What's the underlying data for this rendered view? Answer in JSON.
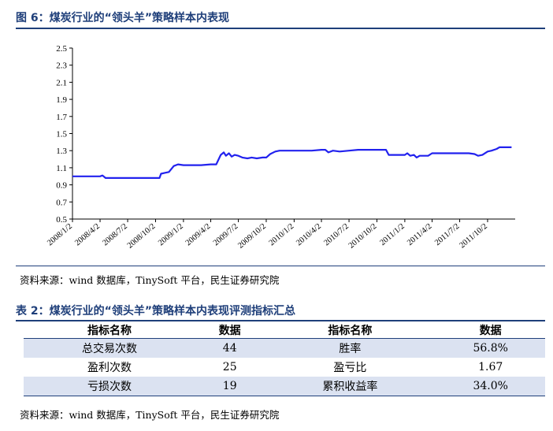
{
  "figure": {
    "title": "图 6：煤炭行业的“领头羊”策略样本内表现",
    "source": "资料来源：wind 数据库，TinySoft 平台，民生证券研究院"
  },
  "chart_data": {
    "type": "line",
    "title": "",
    "xlabel": "",
    "ylabel": "",
    "x_tick_labels": [
      "2008/1/2",
      "2008/4/2",
      "2008/7/2",
      "2008/10/2",
      "2009/1/2",
      "2009/4/2",
      "2009/7/2",
      "2009/10/2",
      "2010/1/2",
      "2010/4/2",
      "2010/7/2",
      "2010/10/2",
      "2011/1/2",
      "2011/4/2",
      "2011/7/2",
      "2011/10/2"
    ],
    "y_ticks": [
      0.5,
      0.7,
      0.9,
      1.1,
      1.3,
      1.5,
      1.7,
      1.9,
      2.1,
      2.3,
      2.5
    ],
    "ylim": [
      0.5,
      2.5
    ],
    "grid": false,
    "series": [
      {
        "color": "#2222ee",
        "points": [
          [
            "2008/1/2",
            1.0
          ],
          [
            "2008/4/2",
            1.0
          ],
          [
            "2008/4/10",
            1.01
          ],
          [
            "2008/4/20",
            0.98
          ],
          [
            "2008/7/2",
            0.98
          ],
          [
            "2008/10/2",
            0.98
          ],
          [
            "2008/10/15",
            0.98
          ],
          [
            "2008/10/20",
            1.03
          ],
          [
            "2008/11/1",
            1.04
          ],
          [
            "2008/11/15",
            1.05
          ],
          [
            "2008/12/1",
            1.12
          ],
          [
            "2008/12/15",
            1.14
          ],
          [
            "2009/1/2",
            1.13
          ],
          [
            "2009/2/1",
            1.13
          ],
          [
            "2009/3/1",
            1.13
          ],
          [
            "2009/4/2",
            1.14
          ],
          [
            "2009/4/20",
            1.14
          ],
          [
            "2009/5/5",
            1.25
          ],
          [
            "2009/5/15",
            1.28
          ],
          [
            "2009/5/22",
            1.24
          ],
          [
            "2009/6/1",
            1.27
          ],
          [
            "2009/6/10",
            1.23
          ],
          [
            "2009/6/20",
            1.25
          ],
          [
            "2009/7/2",
            1.24
          ],
          [
            "2009/7/15",
            1.22
          ],
          [
            "2009/8/1",
            1.21
          ],
          [
            "2009/8/15",
            1.22
          ],
          [
            "2009/9/1",
            1.21
          ],
          [
            "2009/9/20",
            1.22
          ],
          [
            "2009/10/2",
            1.22
          ],
          [
            "2009/10/15",
            1.26
          ],
          [
            "2009/11/1",
            1.29
          ],
          [
            "2009/11/15",
            1.3
          ],
          [
            "2009/12/1",
            1.3
          ],
          [
            "2010/1/2",
            1.3
          ],
          [
            "2010/3/1",
            1.3
          ],
          [
            "2010/4/2",
            1.31
          ],
          [
            "2010/4/15",
            1.31
          ],
          [
            "2010/4/25",
            1.28
          ],
          [
            "2010/5/10",
            1.3
          ],
          [
            "2010/6/1",
            1.29
          ],
          [
            "2010/7/2",
            1.3
          ],
          [
            "2010/8/1",
            1.31
          ],
          [
            "2010/9/1",
            1.31
          ],
          [
            "2010/10/2",
            1.31
          ],
          [
            "2010/11/1",
            1.31
          ],
          [
            "2010/11/10",
            1.25
          ],
          [
            "2010/12/1",
            1.25
          ],
          [
            "2011/1/2",
            1.25
          ],
          [
            "2011/1/10",
            1.27
          ],
          [
            "2011/1/20",
            1.24
          ],
          [
            "2011/2/1",
            1.25
          ],
          [
            "2011/2/10",
            1.22
          ],
          [
            "2011/2/20",
            1.24
          ],
          [
            "2011/3/1",
            1.24
          ],
          [
            "2011/3/20",
            1.24
          ],
          [
            "2011/4/2",
            1.27
          ],
          [
            "2011/5/1",
            1.27
          ],
          [
            "2011/6/1",
            1.27
          ],
          [
            "2011/7/2",
            1.27
          ],
          [
            "2011/8/1",
            1.27
          ],
          [
            "2011/8/20",
            1.26
          ],
          [
            "2011/9/1",
            1.24
          ],
          [
            "2011/9/15",
            1.25
          ],
          [
            "2011/10/2",
            1.29
          ],
          [
            "2011/10/15",
            1.3
          ],
          [
            "2011/11/1",
            1.32
          ],
          [
            "2011/11/10",
            1.34
          ],
          [
            "2011/12/1",
            1.34
          ],
          [
            "2011/12/20",
            1.34
          ]
        ]
      }
    ]
  },
  "table": {
    "title": "表 2：煤炭行业的“领头羊”策略样本内表现评测指标汇总",
    "headers": [
      "指标名称",
      "数据",
      "指标名称",
      "数据"
    ],
    "rows": [
      [
        "总交易次数",
        "44",
        "胜率",
        "56.8%"
      ],
      [
        "盈利次数",
        "25",
        "盈亏比",
        "1.67"
      ],
      [
        "亏损次数",
        "19",
        "累积收益率",
        "34.0%"
      ]
    ],
    "source": "资料来源：wind 数据库，TinySoft 平台，民生证券研究院"
  }
}
